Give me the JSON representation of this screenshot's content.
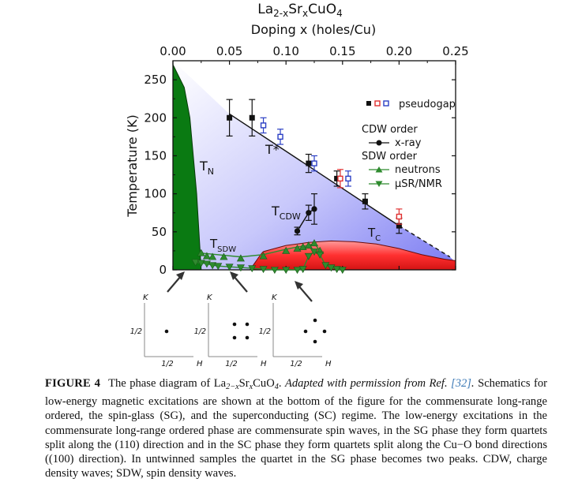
{
  "chart_data": {
    "type": "scatter",
    "title": "La2-xSrxCuO4",
    "title_parts": {
      "a": "La",
      "b": "2-x",
      "c": "Sr",
      "d": "x",
      "e": "CuO",
      "f": "4"
    },
    "xlabel": "Doping x (holes/Cu)",
    "ylabel": "Temperature (K)",
    "xlim": [
      0.0,
      0.25
    ],
    "ylim": [
      0,
      275
    ],
    "x_ticks": [
      "0.00",
      "0.05",
      "0.10",
      "0.15",
      "0.20",
      "0.25"
    ],
    "y_ticks": [
      "0",
      "50",
      "100",
      "150",
      "200",
      "250"
    ],
    "regions": [
      {
        "name": "T",
        "sub": "N",
        "color": "#0a7a12",
        "boundary": [
          [
            0.0,
            270
          ],
          [
            0.01,
            240
          ],
          [
            0.015,
            200
          ],
          [
            0.018,
            150
          ],
          [
            0.021,
            100
          ],
          [
            0.023,
            50
          ],
          [
            0.025,
            0
          ]
        ]
      },
      {
        "name": "T",
        "sub": "C",
        "color": "#ee3030",
        "boundary": [
          [
            0.08,
            24
          ],
          [
            0.1,
            32
          ],
          [
            0.12,
            36
          ],
          [
            0.14,
            38
          ],
          [
            0.16,
            37
          ],
          [
            0.18,
            34
          ],
          [
            0.2,
            28
          ],
          [
            0.22,
            20
          ],
          [
            0.24,
            14
          ],
          [
            0.25,
            12
          ]
        ]
      },
      {
        "name": "T*",
        "sub": "",
        "color": "#7f7ff0"
      },
      {
        "name": "T",
        "sub": "CDW"
      },
      {
        "name": "T",
        "sub": "SDW"
      }
    ],
    "series": [
      {
        "name": "pseudogap",
        "marker": "square",
        "color": "#111111",
        "points": [
          [
            0.05,
            200,
            24
          ],
          [
            0.07,
            200,
            24
          ],
          [
            0.12,
            140,
            12
          ],
          [
            0.145,
            120,
            10
          ],
          [
            0.17,
            90,
            10
          ],
          [
            0.2,
            58,
            10
          ]
        ]
      },
      {
        "name": "pseudogap (open red)",
        "marker": "open-square",
        "color": "#e03030",
        "points": [
          [
            0.148,
            120,
            12
          ],
          [
            0.2,
            70,
            10
          ]
        ]
      },
      {
        "name": "pseudogap (open blue)",
        "marker": "open-square",
        "color": "#2b3fc4",
        "points": [
          [
            0.08,
            190,
            10
          ],
          [
            0.095,
            175,
            10
          ],
          [
            0.125,
            140,
            10
          ],
          [
            0.155,
            120,
            10
          ]
        ]
      },
      {
        "name": "x-ray",
        "marker": "circle",
        "color": "#111111",
        "points": [
          [
            0.11,
            51,
            5
          ],
          [
            0.12,
            75,
            10
          ],
          [
            0.125,
            80,
            20
          ]
        ]
      },
      {
        "name": "neutrons",
        "marker": "triangle-up",
        "color": "#2e8b2e",
        "points": [
          [
            0.025,
            22
          ],
          [
            0.03,
            18
          ],
          [
            0.035,
            17
          ],
          [
            0.045,
            17
          ],
          [
            0.06,
            15
          ],
          [
            0.08,
            18
          ],
          [
            0.1,
            25
          ],
          [
            0.11,
            28
          ],
          [
            0.115,
            30
          ],
          [
            0.12,
            32
          ],
          [
            0.125,
            35
          ],
          [
            0.13,
            25
          ]
        ]
      },
      {
        "name": "μSR/NMR",
        "marker": "triangle-down",
        "color": "#2e8b2e",
        "points": [
          [
            0.02,
            10
          ],
          [
            0.025,
            9
          ],
          [
            0.03,
            8
          ],
          [
            0.035,
            6
          ],
          [
            0.04,
            5
          ],
          [
            0.05,
            4
          ],
          [
            0.06,
            3
          ],
          [
            0.07,
            2
          ],
          [
            0.08,
            1
          ],
          [
            0.09,
            0
          ],
          [
            0.1,
            0
          ],
          [
            0.11,
            0
          ],
          [
            0.115,
            1
          ],
          [
            0.12,
            18
          ],
          [
            0.125,
            24
          ],
          [
            0.13,
            20
          ],
          [
            0.135,
            6
          ],
          [
            0.14,
            3
          ],
          [
            0.145,
            1
          ],
          [
            0.15,
            0
          ]
        ]
      }
    ],
    "lines": [
      {
        "name": "T* line",
        "solid": [
          [
            0.05,
            205
          ],
          [
            0.2,
            58
          ]
        ],
        "dashed": [
          [
            0.2,
            58
          ],
          [
            0.245,
            17
          ]
        ]
      },
      {
        "name": "CDW line",
        "points": [
          [
            0.11,
            51
          ],
          [
            0.12,
            75
          ],
          [
            0.125,
            80
          ]
        ]
      },
      {
        "name": "SDW line",
        "points": [
          [
            0.025,
            22
          ],
          [
            0.06,
            17
          ],
          [
            0.08,
            20
          ],
          [
            0.1,
            27
          ],
          [
            0.11,
            30
          ],
          [
            0.12,
            32
          ],
          [
            0.125,
            35
          ],
          [
            0.13,
            25
          ]
        ]
      }
    ],
    "legend": {
      "placement": "top-right",
      "pseudogap_label": "pseudogap",
      "cdw_header": "CDW order",
      "xray_label": "x-ray",
      "sdw_header": "SDW order",
      "neutrons_label": "neutrons",
      "musr_label": "μSR/NMR"
    },
    "insets": [
      {
        "y_label": "K",
        "x_label": "H",
        "tick_label": "1/2",
        "pattern": "commensurate"
      },
      {
        "y_label": "K",
        "x_label": "H",
        "tick_label": "1/2",
        "pattern": "SG quartet"
      },
      {
        "y_label": "K",
        "x_label": "H",
        "tick_label": "1/2",
        "pattern": "SC quartet"
      }
    ]
  },
  "caption": {
    "label": "FIGURE 4",
    "text1": "The phase diagram of La",
    "sub1": "2−x",
    "text2": "Sr",
    "sub2": "x",
    "text3": "CuO",
    "sub3": "4",
    "text4": ". ",
    "italic": "Adapted with permission from Ref. ",
    "ref": "[32]",
    "italic_end": ".",
    "body": "Schematics for low-energy magnetic excitations are shown at the bottom of the figure for the commensurate long-range ordered, the spin-glass (SG), and the superconducting (SC) regime. The low-energy excitations in the commensurate long-range ordered phase are commensurate spin waves, in the SG phase they form quartets split along the (110) direction and in the SC phase they form quartets split along the Cu−O bond directions ((100) direction). In untwinned samples the quartet in the SG phase becomes two peaks. CDW, charge density waves; SDW, spin density waves."
  }
}
